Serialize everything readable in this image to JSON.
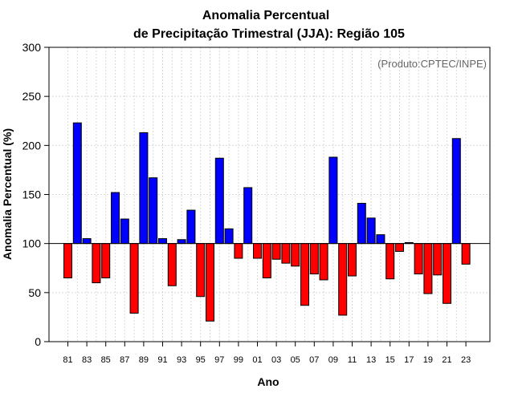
{
  "chart_data": {
    "type": "bar",
    "title": [
      "Anomalia Percentual",
      "de Precipitação Trimestral (JJA): Região 105"
    ],
    "xlabel": "Ano",
    "ylabel": "Anomalia Percentual (%)",
    "credit": "(Produto:CPTEC/INPE)",
    "baseline": 100,
    "ylim": [
      0,
      300
    ],
    "yticks": [
      "0",
      "50",
      "100",
      "150",
      "200",
      "250",
      "300"
    ],
    "grid": true,
    "colors": {
      "above": "#0000ff",
      "below": "#ff0000",
      "edge": "#000000",
      "grid": "#d9d9d9"
    },
    "categories": [
      "81",
      "82",
      "83",
      "84",
      "85",
      "86",
      "87",
      "88",
      "89",
      "90",
      "91",
      "92",
      "93",
      "94",
      "95",
      "96",
      "97",
      "98",
      "99",
      "00",
      "01",
      "02",
      "03",
      "04",
      "05",
      "06",
      "07",
      "08",
      "09",
      "10",
      "11",
      "12",
      "13",
      "14",
      "15",
      "16",
      "17",
      "18",
      "19",
      "20",
      "21",
      "22",
      "23"
    ],
    "tick_labels": [
      "81",
      "83",
      "85",
      "87",
      "89",
      "91",
      "93",
      "95",
      "97",
      "99",
      "01",
      "03",
      "05",
      "07",
      "09",
      "11",
      "13",
      "15",
      "17",
      "19",
      "21",
      "23"
    ],
    "values": [
      65,
      223,
      105,
      60,
      65,
      152,
      125,
      29,
      213,
      167,
      105,
      57,
      104,
      134,
      46,
      21,
      187,
      115,
      85,
      157,
      85,
      65,
      84,
      80,
      77,
      37,
      69,
      63,
      188,
      27,
      67,
      141,
      126,
      109,
      64,
      92,
      101,
      69,
      49,
      68,
      39,
      207,
      79
    ]
  }
}
